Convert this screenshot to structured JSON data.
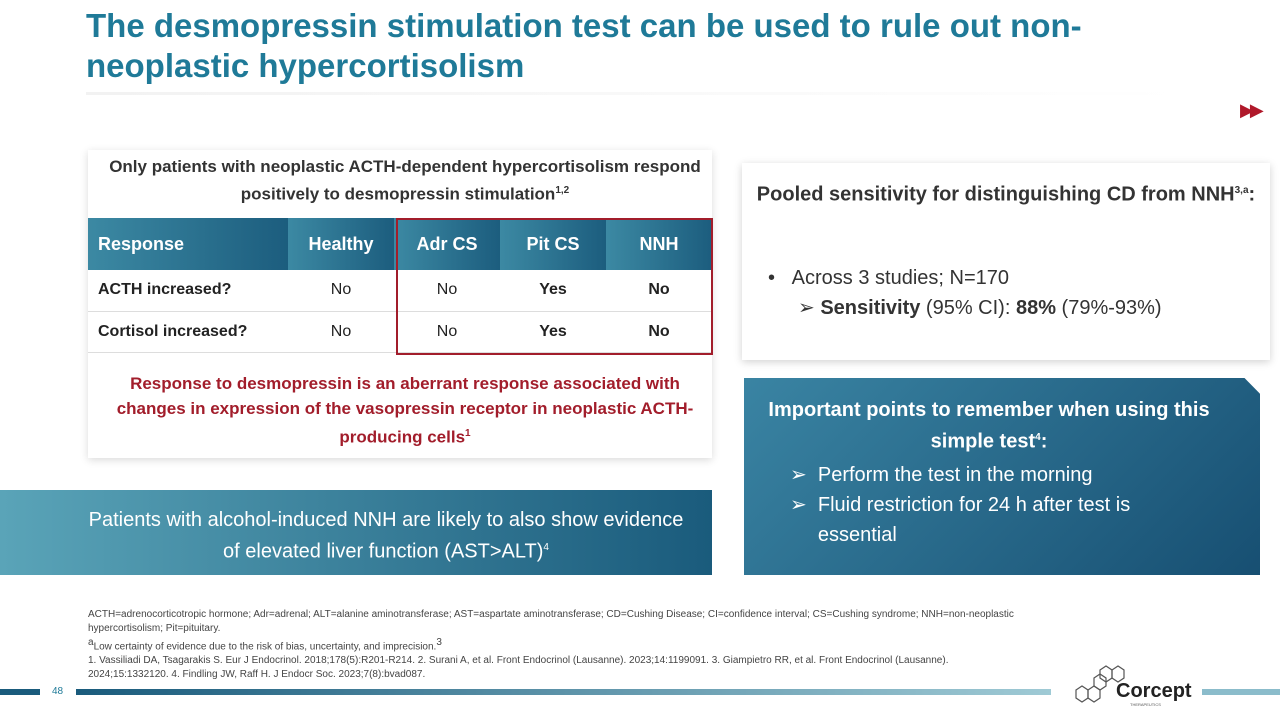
{
  "title": "The desmopressin stimulation test can be used to rule out non-neoplastic hypercortisolism",
  "subhead": "Only patients with neoplastic ACTH-dependent hypercortisolism respond positively to desmopressin stimulation",
  "subhead_sup": "1,2",
  "table": {
    "headers": [
      "Response",
      "Healthy",
      "Adr CS",
      "Pit CS",
      "NNH"
    ],
    "rows": [
      [
        "ACTH increased?",
        "No",
        "No",
        "Yes",
        "No"
      ],
      [
        "Cortisol increased?",
        "No",
        "No",
        "Yes",
        "No"
      ]
    ]
  },
  "red_note": "Response to desmopressin is an aberrant response associated with changes in expression of the vasopressin receptor in neoplastic ACTH-producing cells",
  "red_note_sup": "1",
  "banner": "Patients with alcohol-induced NNH are likely to also show evidence of elevated liver function (AST>ALT)",
  "banner_sup": "4",
  "pooled": {
    "heading": "Pooled sensitivity for distinguishing CD from NNH",
    "heading_sup": "3,a",
    "colon": ":",
    "bullet": "Across 3 studies; N=170",
    "sens_label": "Sensitivity",
    "ci_label": " (95% CI): ",
    "value": "88%",
    "range": " (79%-93%)"
  },
  "points": {
    "heading": "Important points to remember when using this simple test",
    "heading_sup": "4",
    "items": [
      "Perform the test in the morning",
      "Fluid restriction for 24 h after test is essential"
    ]
  },
  "footnotes": {
    "abbrev": "ACTH=adrenocorticotropic hormone; Adr=adrenal; ALT=alanine aminotransferase; AST=aspartate aminotransferase; CD=Cushing Disease; CI=confidence interval; CS=Cushing syndrome; NNH=non-neoplastic hypercortisolism; Pit=pituitary.",
    "a": "Low certainty of evidence due to the risk of bias, uncertainty, and imprecision.",
    "refs": "1. Vassiliadi DA, Tsagarakis S. Eur J Endocrinol. 2018;178(5):R201-R214. 2. Surani A, et al. Front Endocrinol (Lausanne). 2023;14:1199091. 3. Giampietro RR, et al. Front Endocrinol (Lausanne). 2024;15:1332120. 4. Findling JW, Raff H. J Endocr Soc. 2023;7(8):bvad087."
  },
  "page_number": "48",
  "logo": {
    "name": "Corcept",
    "tag": "THERAPEUTICS"
  },
  "colors": {
    "teal": "#1f7a98",
    "red": "#a21d2b"
  }
}
